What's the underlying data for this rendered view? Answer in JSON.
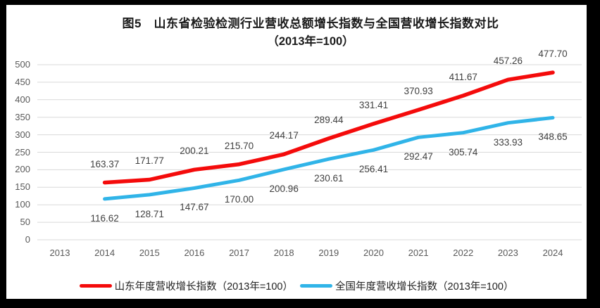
{
  "chart_data": {
    "type": "line",
    "title": "图5　山东省检验检测行业营收总额增长指数与全国营收增长指数对比",
    "subtitle": "（2013年=100）",
    "categories": [
      "2013",
      "2014",
      "2015",
      "2016",
      "2017",
      "2018",
      "2019",
      "2020",
      "2021",
      "2022",
      "2023",
      "2024"
    ],
    "series": [
      {
        "key": "shandong",
        "name": "山东年度营收增长指数（2013年=100）",
        "color": "#f40b0b",
        "start_index": 1,
        "values": [
          163.37,
          171.77,
          200.21,
          215.7,
          244.17,
          289.44,
          331.41,
          370.93,
          411.67,
          457.26,
          477.7
        ],
        "labels_position": "above"
      },
      {
        "key": "national",
        "name": "全国年度营收增长指数（2013年=100）",
        "color": "#30b4e8",
        "start_index": 1,
        "values": [
          116.62,
          128.71,
          147.67,
          170.0,
          200.96,
          230.61,
          256.41,
          292.47,
          305.74,
          333.93,
          348.65
        ],
        "labels_position": "below"
      }
    ],
    "ylim": [
      0,
      500
    ],
    "ytick_step": 50,
    "grid": true,
    "gridline_color": "#d9d9d9",
    "legend_position": "bottom"
  }
}
